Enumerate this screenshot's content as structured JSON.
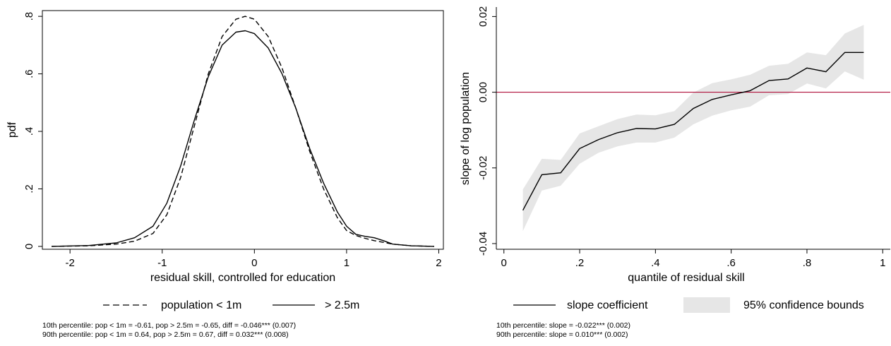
{
  "chart_data": [
    {
      "type": "line",
      "xlabel": "residual skill, controlled for education",
      "ylabel": "pdf",
      "xlim": [
        -2.3,
        2.05
      ],
      "ylim": [
        -0.01,
        0.82
      ],
      "x_ticks": [
        -2,
        -1,
        0,
        1,
        2
      ],
      "x_tick_labels": [
        "-2",
        "-1",
        "0",
        "1",
        "2"
      ],
      "y_ticks": [
        0,
        0.2,
        0.4,
        0.6,
        0.8
      ],
      "y_tick_labels": [
        "0",
        ".2",
        ".4",
        ".6",
        ".8"
      ],
      "grid": false,
      "legend_position": "bottom",
      "series": [
        {
          "name": "population < 1m",
          "style": "dashed",
          "x": [
            -2.2,
            -1.8,
            -1.5,
            -1.3,
            -1.1,
            -0.95,
            -0.8,
            -0.65,
            -0.5,
            -0.35,
            -0.2,
            -0.1,
            0.0,
            0.15,
            0.3,
            0.45,
            0.6,
            0.75,
            0.9,
            1.0,
            1.1,
            1.2,
            1.3,
            1.5,
            1.7,
            1.95
          ],
          "y": [
            0.0,
            0.002,
            0.008,
            0.018,
            0.045,
            0.11,
            0.24,
            0.42,
            0.6,
            0.73,
            0.79,
            0.8,
            0.79,
            0.73,
            0.62,
            0.48,
            0.33,
            0.2,
            0.1,
            0.055,
            0.038,
            0.028,
            0.02,
            0.008,
            0.002,
            0.0
          ]
        },
        {
          "name": "> 2.5m",
          "style": "solid",
          "x": [
            -2.2,
            -1.8,
            -1.5,
            -1.3,
            -1.1,
            -0.95,
            -0.8,
            -0.65,
            -0.5,
            -0.35,
            -0.2,
            -0.1,
            0.0,
            0.15,
            0.3,
            0.45,
            0.6,
            0.75,
            0.9,
            1.0,
            1.1,
            1.2,
            1.3,
            1.4,
            1.5,
            1.7,
            1.95
          ],
          "y": [
            0.0,
            0.003,
            0.012,
            0.03,
            0.07,
            0.15,
            0.28,
            0.44,
            0.59,
            0.7,
            0.745,
            0.75,
            0.74,
            0.69,
            0.6,
            0.48,
            0.34,
            0.22,
            0.12,
            0.07,
            0.042,
            0.035,
            0.03,
            0.02,
            0.008,
            0.002,
            0.0
          ]
        }
      ],
      "notes": [
        "10th percentile: pop < 1m = -0.61, pop > 2.5m = -0.65, diff = -0.046*** (0.007)",
        "90th percentile: pop < 1m = 0.64, pop > 2.5m = 0.67, diff = 0.032*** (0.008)"
      ]
    },
    {
      "type": "line",
      "xlabel": "quantile of residual skill",
      "ylabel": "slope of log population",
      "xlim": [
        -0.02,
        1.02
      ],
      "ylim": [
        -0.0415,
        0.0225
      ],
      "x_ticks": [
        0,
        0.2,
        0.4,
        0.6,
        0.8,
        1
      ],
      "x_tick_labels": [
        "0",
        ".2",
        ".4",
        ".6",
        ".8",
        "1"
      ],
      "y_ticks": [
        -0.04,
        -0.02,
        0.0,
        0.02
      ],
      "y_tick_labels": [
        "-0.04",
        "-0.02",
        "0.00",
        "0.02"
      ],
      "grid": false,
      "legend_position": "bottom",
      "reference_line": {
        "y": 0.0,
        "color": "#b0103a"
      },
      "band_color": "#e6e6e6",
      "series": [
        {
          "name": "slope coefficient",
          "x": [
            0.05,
            0.1,
            0.15,
            0.2,
            0.25,
            0.3,
            0.35,
            0.4,
            0.45,
            0.5,
            0.55,
            0.6,
            0.65,
            0.7,
            0.75,
            0.8,
            0.85,
            0.9,
            0.95
          ],
          "y": [
            -0.0312,
            -0.0218,
            -0.0213,
            -0.0149,
            -0.0125,
            -0.0107,
            -0.0096,
            -0.0097,
            -0.0085,
            -0.0043,
            -0.0019,
            -0.0007,
            0.0004,
            0.0031,
            0.0035,
            0.0064,
            0.0054,
            0.0105,
            0.0105
          ]
        },
        {
          "name": "95% confidence bounds",
          "lower": [
            -0.0367,
            -0.026,
            -0.0247,
            -0.0189,
            -0.016,
            -0.0143,
            -0.0133,
            -0.0133,
            -0.012,
            -0.0085,
            -0.0062,
            -0.0048,
            -0.0038,
            -0.0008,
            -0.0005,
            0.0023,
            0.001,
            0.0055,
            0.0033
          ],
          "upper": [
            -0.0257,
            -0.0176,
            -0.0179,
            -0.0109,
            -0.009,
            -0.0071,
            -0.0059,
            -0.0061,
            -0.005,
            -0.0001,
            0.0024,
            0.0034,
            0.0046,
            0.007,
            0.0075,
            0.0105,
            0.0098,
            0.0155,
            0.0178
          ]
        }
      ],
      "notes": [
        "10th percentile: slope = -0.022*** (0.002)",
        "90th percentile: slope = 0.010*** (0.002)"
      ]
    }
  ]
}
